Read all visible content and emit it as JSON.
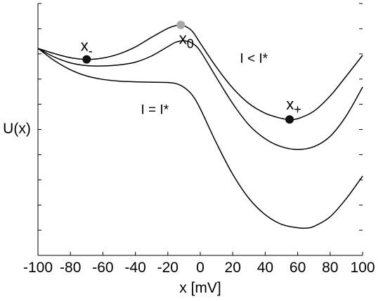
{
  "chart_data": {
    "type": "line",
    "xlabel": "x [mV]",
    "ylabel": "U(x)",
    "xlim": [
      -100,
      100
    ],
    "xticks": [
      "-100",
      "-80",
      "-60",
      "-40",
      "-20",
      "0",
      "20",
      "40",
      "60",
      "80",
      "100"
    ],
    "grid": false,
    "legend": "none",
    "series": [
      {
        "name": "I < I*",
        "x": [
          -100,
          -90,
          -80,
          -70,
          -60,
          -50,
          -40,
          -30,
          -20,
          -15,
          -12,
          -10,
          -5,
          0,
          10,
          20,
          30,
          40,
          50,
          55,
          60,
          70,
          80,
          90,
          100
        ],
        "y": [
          1.4,
          1.25,
          1.13,
          1.08,
          1.12,
          1.24,
          1.44,
          1.72,
          1.98,
          2.06,
          2.08,
          2.06,
          1.9,
          1.55,
          0.85,
          0.25,
          -0.2,
          -0.48,
          -0.63,
          -0.66,
          -0.64,
          -0.42,
          0.02,
          0.6,
          1.2
        ]
      },
      {
        "name": "",
        "x": [
          -100,
          -90,
          -80,
          -70,
          -60,
          -50,
          -40,
          -30,
          -20,
          -15,
          -10,
          -5,
          0,
          10,
          20,
          30,
          40,
          50,
          60,
          70,
          80,
          90,
          100
        ],
        "y": [
          1.4,
          1.15,
          0.98,
          0.9,
          0.89,
          0.92,
          1.0,
          1.18,
          1.45,
          1.58,
          1.62,
          1.55,
          1.32,
          0.55,
          -0.2,
          -0.82,
          -1.22,
          -1.45,
          -1.53,
          -1.45,
          -1.15,
          -0.55,
          0.28
        ]
      },
      {
        "name": "I = I*",
        "x": [
          -100,
          -90,
          -80,
          -70,
          -60,
          -50,
          -40,
          -30,
          -20,
          -15,
          -10,
          -5,
          0,
          10,
          20,
          30,
          40,
          50,
          60,
          65,
          70,
          80,
          90,
          100
        ],
        "y": [
          1.4,
          1.05,
          0.78,
          0.6,
          0.5,
          0.45,
          0.43,
          0.42,
          0.41,
          0.38,
          0.27,
          0.05,
          -0.35,
          -1.35,
          -2.25,
          -2.95,
          -3.42,
          -3.7,
          -3.8,
          -3.81,
          -3.76,
          -3.48,
          -2.95,
          -2.3
        ]
      }
    ],
    "points": [
      {
        "label": "x",
        "sub": "-",
        "x": -70,
        "y": 1.08,
        "color": "#111111"
      },
      {
        "label": "x",
        "sub": "0",
        "x": -12,
        "y": 2.08,
        "color": "#a8a8a8"
      },
      {
        "label": "x",
        "sub": "+",
        "x": 55,
        "y": -0.66,
        "color": "#111111"
      }
    ],
    "annotations": [
      {
        "text": "I < I*",
        "x": 33,
        "y": 0.98
      },
      {
        "text": "I = I*",
        "x": -28,
        "y": -0.5
      }
    ]
  }
}
